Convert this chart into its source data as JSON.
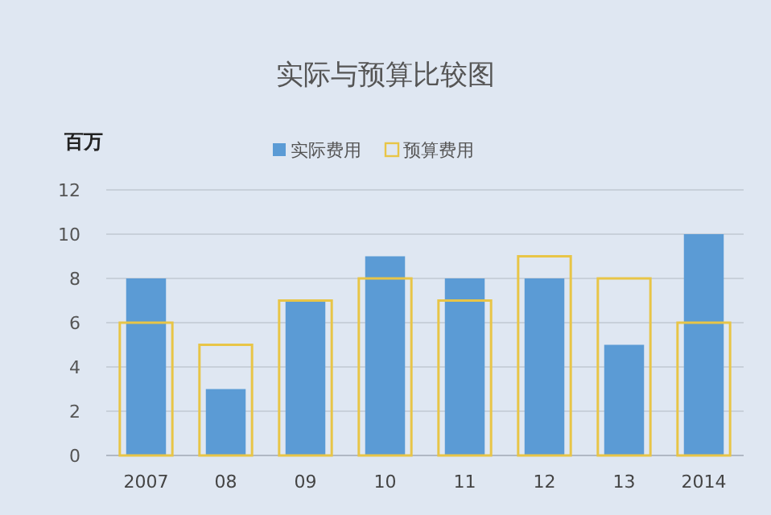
{
  "chart_data": {
    "type": "bar",
    "title": "实际与预算比较图",
    "ylabel": "百万",
    "categories": [
      "2007",
      "08",
      "09",
      "10",
      "11",
      "12",
      "13",
      "2014"
    ],
    "series": [
      {
        "name": "实际费用",
        "color": "#5b9bd5",
        "values": [
          8,
          3,
          7,
          9,
          8,
          8,
          5,
          10
        ]
      },
      {
        "name": "预算费用",
        "color": "#e8c547",
        "values": [
          6,
          5,
          7,
          8,
          7,
          9,
          8,
          6
        ]
      }
    ],
    "ylim": [
      0,
      12
    ],
    "yticks": [
      0,
      2,
      4,
      6,
      8,
      10,
      12
    ],
    "grid": "y",
    "legend": "top"
  }
}
